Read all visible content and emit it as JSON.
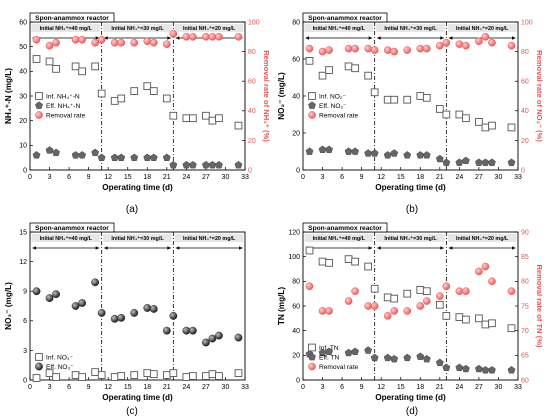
{
  "figure": {
    "panels": [
      "(a)",
      "(b)",
      "(c)",
      "(d)"
    ]
  },
  "colors": {
    "influent_marker_fill": "#ffffff",
    "influent_marker_stroke": "#555555",
    "effluent_marker": "#666666",
    "removal_marker": "#f25c5c",
    "removal_axis": "#e65555",
    "phase_box_fill": "#e6e6e6"
  },
  "chart_data": [
    {
      "id": "a",
      "type": "scatter",
      "panel_label": "(a)",
      "header": "Spon-anammox reactor",
      "phases": [
        "Initial NH₄⁺=40 mg/L",
        "Initial NH₄⁺=30 mg/L",
        "Initial NH₄⁺=20 mg/L"
      ],
      "phase_boundaries": [
        11,
        22
      ],
      "xlabel": "Operating time (d)",
      "xlim": [
        0,
        33
      ],
      "xticks": [
        0,
        3,
        6,
        9,
        12,
        15,
        18,
        21,
        24,
        27,
        30,
        33
      ],
      "ylabel": "NH₄⁺-N  (mg/L)",
      "ylim": [
        0,
        60
      ],
      "yticks": [
        0,
        10,
        20,
        30,
        40,
        50,
        60
      ],
      "y2label": "Removal rate of NH₄⁺ (%)",
      "y2lim": [
        0,
        100
      ],
      "y2ticks": [
        0,
        20,
        40,
        60,
        80,
        100
      ],
      "legend": [
        "Inf. NH₄⁺-N",
        "Eff. NH₄⁺-N",
        "Removal rate"
      ],
      "legend_position": "middle-left",
      "series": [
        {
          "name": "Inf. NH₄⁺-N",
          "marker": "square",
          "x": [
            1,
            3,
            4,
            7,
            8,
            10,
            11,
            13,
            14,
            16,
            18,
            19,
            21,
            22,
            24,
            25,
            27,
            28,
            29,
            32
          ],
          "values": [
            45,
            44,
            41,
            42,
            40,
            42,
            31,
            28,
            29,
            32,
            34,
            32,
            29,
            22,
            21,
            21,
            22,
            20,
            21,
            18
          ]
        },
        {
          "name": "Eff. NH₄⁺-N",
          "marker": "pentagon",
          "x": [
            1,
            3,
            4,
            7,
            8,
            10,
            11,
            13,
            14,
            16,
            18,
            19,
            21,
            22,
            24,
            25,
            27,
            28,
            29,
            32
          ],
          "values": [
            6,
            8,
            7,
            6,
            6,
            7,
            5,
            5,
            5,
            5,
            5,
            5,
            5,
            2,
            2,
            2,
            2,
            2,
            2,
            2
          ]
        },
        {
          "name": "Removal rate",
          "marker": "circle",
          "axis": "right",
          "x": [
            1,
            3,
            4,
            7,
            8,
            10,
            11,
            13,
            14,
            16,
            18,
            19,
            21,
            22,
            24,
            25,
            27,
            28,
            29,
            32
          ],
          "values": [
            88,
            84,
            86,
            88,
            88,
            86,
            88,
            86,
            86,
            86,
            87,
            86,
            85,
            92,
            90,
            90,
            90,
            90,
            90,
            90
          ]
        }
      ]
    },
    {
      "id": "b",
      "type": "scatter",
      "panel_label": "(b)",
      "header": "Spon-anammox reactor",
      "phases": [
        "Initial NH₄⁺=40 mg/L",
        "Initial NH₄⁺=30 mg/L",
        "Initial NH₄⁺=20 mg/L"
      ],
      "phase_boundaries": [
        11,
        22
      ],
      "xlabel": "Operating time (d)",
      "xlim": [
        0,
        33
      ],
      "xticks": [
        0,
        3,
        6,
        9,
        12,
        15,
        18,
        21,
        24,
        27,
        30,
        33
      ],
      "ylabel": "NO₂⁻ (mg/L)",
      "ylim": [
        0,
        80
      ],
      "yticks": [
        0,
        20,
        40,
        60,
        80
      ],
      "y2label": "Removal rate of NO₂⁻ (%)",
      "y2lim": [
        0,
        100
      ],
      "y2ticks": [
        0,
        20,
        40,
        60,
        80,
        100
      ],
      "legend": [
        "Inf. NO₂⁻",
        "Eff. NO₂⁻",
        "Removal rate"
      ],
      "legend_position": "middle-left",
      "series": [
        {
          "name": "Inf. NO₂⁻",
          "marker": "square",
          "x": [
            1,
            3,
            4,
            7,
            8,
            10,
            11,
            13,
            14,
            16,
            18,
            19,
            21,
            22,
            24,
            25,
            27,
            28,
            29,
            32
          ],
          "values": [
            59,
            51,
            54,
            56,
            55,
            51,
            42,
            38,
            38,
            38,
            40,
            39,
            33,
            30,
            30,
            28,
            26,
            23,
            24,
            23
          ]
        },
        {
          "name": "Eff. NO₂⁻",
          "marker": "pentagon",
          "x": [
            1,
            3,
            4,
            7,
            8,
            10,
            11,
            13,
            14,
            16,
            18,
            19,
            21,
            22,
            24,
            25,
            27,
            28,
            29,
            32
          ],
          "values": [
            10,
            11,
            11,
            10,
            10,
            9,
            9,
            8,
            9,
            8,
            8,
            8,
            6,
            4,
            4,
            5,
            4,
            4,
            4,
            4
          ]
        },
        {
          "name": "Removal rate",
          "marker": "circle",
          "axis": "right",
          "x": [
            1,
            3,
            4,
            7,
            8,
            10,
            11,
            13,
            14,
            16,
            18,
            19,
            21,
            22,
            24,
            25,
            27,
            28,
            29,
            32
          ],
          "values": [
            82,
            80,
            81,
            82,
            82,
            82,
            81,
            81,
            80,
            81,
            82,
            82,
            84,
            86,
            85,
            84,
            87,
            90,
            86,
            84
          ]
        }
      ]
    },
    {
      "id": "c",
      "type": "scatter",
      "panel_label": "(c)",
      "header": "Spon-anammox reactor",
      "phases": [
        "Initial NH₄⁺=40 mg/L",
        "Initial NH₄⁺=30 mg/L",
        "Initial NH₄⁺=20 mg/L"
      ],
      "phase_boundaries": [
        11,
        22
      ],
      "xlabel": "Operating time (d)",
      "xlim": [
        0,
        33
      ],
      "xticks": [
        0,
        3,
        6,
        9,
        12,
        15,
        18,
        21,
        24,
        27,
        30,
        33
      ],
      "ylabel": "NO₃⁻ (mg/L)",
      "ylim": [
        0,
        15
      ],
      "yticks": [
        0,
        3,
        6,
        9,
        12,
        15
      ],
      "legend": [
        "Inf. NO₃⁻",
        "Eff. NO₃⁻"
      ],
      "legend_position": "lower-left",
      "series": [
        {
          "name": "Inf. NO₃⁻",
          "marker": "square",
          "x": [
            1,
            3,
            4,
            7,
            8,
            10,
            11,
            13,
            14,
            16,
            18,
            19,
            21,
            22,
            24,
            25,
            27,
            28,
            29,
            32
          ],
          "values": [
            0.2,
            0.7,
            0.3,
            0.5,
            0.3,
            0.8,
            0.5,
            0.3,
            0.4,
            0.5,
            0.7,
            0.6,
            0.5,
            0.7,
            0.3,
            0.4,
            0.4,
            0.6,
            0.4,
            0.7
          ]
        },
        {
          "name": "Eff. NO₃⁻",
          "marker": "sphere",
          "x": [
            1,
            3,
            4,
            7,
            8,
            10,
            11,
            13,
            14,
            16,
            18,
            19,
            21,
            22,
            24,
            25,
            27,
            28,
            29,
            32
          ],
          "values": [
            9.0,
            8.3,
            8.7,
            7.5,
            7.8,
            9.9,
            6.8,
            6.2,
            6.3,
            6.8,
            7.3,
            7.2,
            5.0,
            6.5,
            5.0,
            5.0,
            3.8,
            4.2,
            4.5,
            4.3
          ]
        }
      ]
    },
    {
      "id": "d",
      "type": "scatter",
      "panel_label": "(d)",
      "header": "Spon-anammox reactor",
      "phases": [
        "Initial NH₄⁺=40 mg/L",
        "Initial NH₄⁺=30 mg/L",
        "Initial NH₄⁺=20 mg/L"
      ],
      "phase_boundaries": [
        11,
        22
      ],
      "xlabel": "Operating time (d)",
      "xlim": [
        0,
        33
      ],
      "xticks": [
        0,
        3,
        6,
        9,
        12,
        15,
        18,
        21,
        24,
        27,
        30,
        33
      ],
      "ylabel": "TN (mg/L)",
      "ylim": [
        0,
        120
      ],
      "yticks": [
        0,
        20,
        40,
        60,
        80,
        100,
        120
      ],
      "y2label": "Removal rate of TN (%)",
      "y2lim": [
        60,
        90
      ],
      "y2ticks": [
        60,
        65,
        70,
        75,
        80,
        85,
        90
      ],
      "legend": [
        "Inf. TN",
        "Eff. TN",
        "Removal rate"
      ],
      "legend_position": "lower-left",
      "series": [
        {
          "name": "Inf. TN",
          "marker": "square",
          "x": [
            1,
            3,
            4,
            7,
            8,
            10,
            11,
            13,
            14,
            16,
            18,
            19,
            21,
            22,
            24,
            25,
            27,
            28,
            29,
            32
          ],
          "values": [
            105,
            96,
            95,
            98,
            96,
            92,
            74,
            67,
            66,
            70,
            73,
            72,
            61,
            52,
            51,
            49,
            50,
            45,
            46,
            42
          ]
        },
        {
          "name": "Eff. TN",
          "marker": "pentagon",
          "x": [
            1,
            3,
            4,
            7,
            8,
            10,
            11,
            13,
            14,
            16,
            18,
            19,
            21,
            22,
            24,
            25,
            27,
            28,
            29,
            32
          ],
          "values": [
            21,
            22,
            23,
            22,
            23,
            24,
            18,
            18,
            17,
            18,
            19,
            17,
            14,
            10,
            10,
            9,
            9,
            8,
            8,
            8
          ]
        },
        {
          "name": "Removal rate",
          "marker": "circle",
          "axis": "right",
          "x": [
            1,
            3,
            4,
            7,
            8,
            10,
            11,
            13,
            14,
            16,
            18,
            19,
            21,
            22,
            24,
            25,
            27,
            28,
            29,
            32
          ],
          "values": [
            79,
            74,
            74,
            76,
            78,
            75,
            75,
            73,
            74,
            74,
            75,
            76,
            77,
            79,
            78,
            78,
            82,
            83,
            80,
            78
          ]
        }
      ]
    }
  ]
}
